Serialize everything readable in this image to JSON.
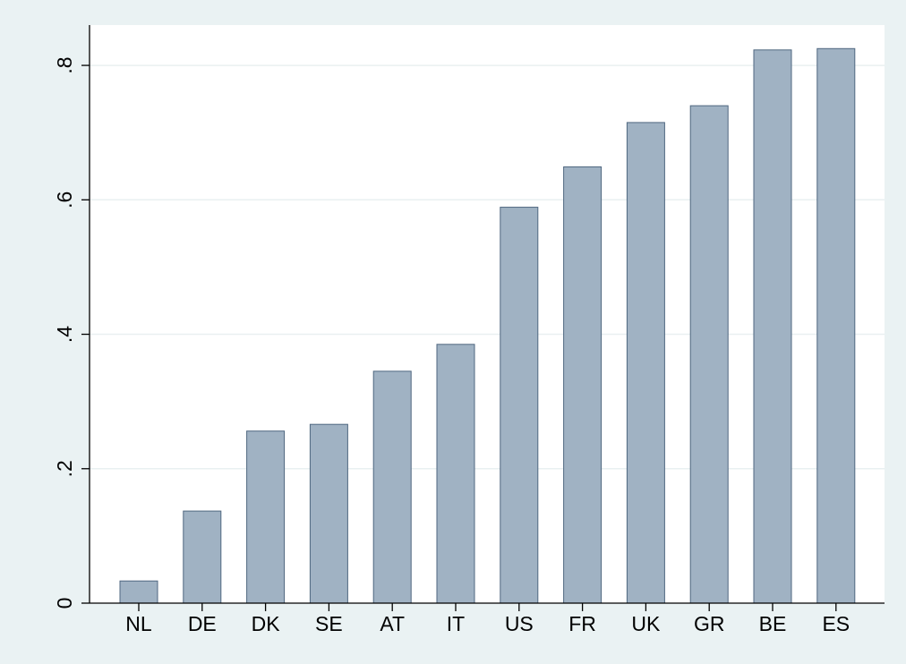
{
  "colors": {
    "background": "#eaf2f3",
    "plot_area": "#ffffff",
    "bar_fill": "#a0b2c3",
    "bar_stroke": "#4f6780",
    "grid": "#e9f0f1",
    "axis": "#000000"
  },
  "chart_data": {
    "type": "bar",
    "title": "",
    "xlabel": "",
    "ylabel": "",
    "categories": [
      "NL",
      "DE",
      "DK",
      "SE",
      "AT",
      "IT",
      "US",
      "FR",
      "UK",
      "GR",
      "BE",
      "ES"
    ],
    "values": [
      0.033,
      0.137,
      0.256,
      0.266,
      0.345,
      0.385,
      0.589,
      0.649,
      0.715,
      0.74,
      0.823,
      0.825
    ],
    "ylim": [
      0,
      0.86
    ],
    "yticks": [
      0,
      0.2,
      0.4,
      0.6,
      0.8
    ],
    "ytick_labels": [
      "0",
      ".2",
      ".4",
      ".6",
      ".8"
    ],
    "grid": true,
    "legend": "none"
  }
}
